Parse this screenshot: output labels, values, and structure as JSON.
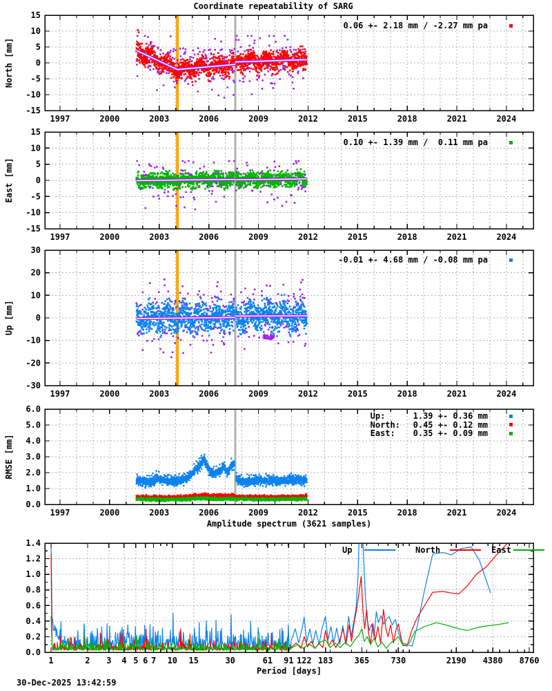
{
  "title": "Coordinate repeatability of SARG",
  "timestamp": "30-Dec-2025 13:42:59",
  "colors": {
    "north": "#ff0000",
    "east": "#00b400",
    "up": "#0c82f0",
    "outlier": "#a020f0",
    "trend_core": "#ffffff",
    "orange_line": "#ffa500",
    "gray_line": "#b0b0b0",
    "grid": "#b0b0b0",
    "axis": "#000000"
  },
  "chart_data": {
    "type": "multi-panel gnss time series + amplitude spectrum",
    "x_axis": {
      "range_years": [
        1996.08,
        2025.6
      ],
      "year_labels": [
        "1997",
        "2000",
        "2003",
        "2006",
        "2009",
        "2012",
        "2015",
        "2018",
        "2021",
        "2024"
      ],
      "minor_step_years": 1
    },
    "event_lines": {
      "orange_year": 2004.1,
      "gray_year": 2007.6
    },
    "panels": [
      {
        "id": "north",
        "ylabel": "North [mm]",
        "ylim": [
          -15,
          15
        ],
        "ytick_labels": [
          "15",
          "10",
          "5",
          "0",
          "-5",
          "-10",
          "-15"
        ],
        "stats": "0.06 +- 2.18 mm / -2.27 mm pa",
        "color_key": "north",
        "span": [
          2001.62,
          2011.92
        ],
        "trend": [
          [
            [
              2001.62,
              3.9
            ],
            [
              2004.1,
              -2.1
            ]
          ],
          [
            [
              2004.1,
              -2.1
            ],
            [
              2007.6,
              -0.5
            ]
          ],
          [
            [
              2007.6,
              0.3
            ],
            [
              2011.92,
              1.0
            ]
          ]
        ],
        "noise": {
          "seed": 101,
          "n": 1810,
          "sigma": 1.5,
          "band": 3.9,
          "seasonal": 0.9,
          "out_frac": 0.1,
          "out_sigma": 3.2,
          "clip": [
            -11.8,
            8.5
          ]
        },
        "extra_points": [
          [
            2001.7,
            10.3
          ],
          [
            2001.76,
            9.6
          ]
        ]
      },
      {
        "id": "east",
        "ylabel": "East [mm]",
        "ylim": [
          -15,
          15
        ],
        "ytick_labels": [
          "15",
          "10",
          "5",
          "0",
          "-5",
          "-10",
          "-15"
        ],
        "stats": "0.10 +- 1.39 mm /  0.11 mm pa",
        "color_key": "east",
        "span": [
          2001.62,
          2011.92
        ],
        "trend": [
          [
            [
              2001.62,
              -0.1
            ],
            [
              2004.1,
              0.1
            ]
          ],
          [
            [
              2004.1,
              0.1
            ],
            [
              2007.6,
              0.3
            ]
          ],
          [
            [
              2007.6,
              0.2
            ],
            [
              2011.92,
              0.45
            ]
          ]
        ],
        "noise": {
          "seed": 111,
          "n": 1810,
          "sigma": 1.1,
          "band": 2.8,
          "seasonal": 0.45,
          "out_frac": 0.07,
          "out_sigma": 3.0,
          "clip": [
            -9.0,
            6.0
          ]
        }
      },
      {
        "id": "up",
        "ylabel": "Up [mm]",
        "ylim": [
          -30,
          30
        ],
        "ytick_labels": [
          "30",
          "20",
          "10",
          "0",
          "-10",
          "-20",
          "-30"
        ],
        "stats": "-0.01 +- 4.68 mm / -0.08 mm pa",
        "color_key": "up",
        "span": [
          2001.62,
          2011.92
        ],
        "trend": [
          [
            [
              2001.62,
              -0.3
            ],
            [
              2004.1,
              -0.1
            ]
          ],
          [
            [
              2004.1,
              -0.1
            ],
            [
              2007.6,
              0.2
            ]
          ],
          [
            [
              2007.6,
              0.8
            ],
            [
              2011.92,
              0.9
            ]
          ]
        ],
        "noise": {
          "seed": 121,
          "n": 1810,
          "sigma": 3.2,
          "band": 8.0,
          "seasonal": 1.6,
          "out_frac": 0.1,
          "out_sigma": 5.0,
          "clip": [
            -21.0,
            19.0
          ]
        },
        "purple_cluster": {
          "t0": 2009.3,
          "t1": 2009.95,
          "v": -8.5,
          "spread": 1.1,
          "n": 40
        }
      },
      {
        "id": "rmse",
        "ylabel": "RMSE [mm]",
        "ylim": [
          0,
          6
        ],
        "ytick_labels": [
          "6.0",
          "5.0",
          "4.0",
          "3.0",
          "2.0",
          "1.0",
          "0.0"
        ],
        "span": [
          2001.62,
          2011.92
        ],
        "legend": [
          {
            "label": "Up:",
            "value": "1.39 +- 0.36 mm",
            "color_key": "up"
          },
          {
            "label": "North:",
            "value": "0.45 +- 0.12 mm",
            "color_key": "north"
          },
          {
            "label": "East:",
            "value": "0.35 +- 0.09 mm",
            "color_key": "east"
          }
        ],
        "series": [
          {
            "color_key": "up",
            "seed": 201,
            "noise": 0.13,
            "spike": 0.3,
            "anchors": [
              [
                2001.62,
                1.45
              ],
              [
                2002.5,
                1.42
              ],
              [
                2003.0,
                1.6
              ],
              [
                2003.6,
                1.42
              ],
              [
                2004.3,
                1.5
              ],
              [
                2004.8,
                1.75
              ],
              [
                2005.3,
                2.25
              ],
              [
                2005.7,
                2.85
              ],
              [
                2006.0,
                2.15
              ],
              [
                2006.35,
                1.9
              ],
              [
                2006.65,
                2.1
              ],
              [
                2006.9,
                2.45
              ],
              [
                2007.1,
                2.0
              ],
              [
                2007.35,
                2.35
              ],
              [
                2007.58,
                2.55
              ],
              [
                2007.65,
                1.55
              ],
              [
                2008.2,
                1.45
              ],
              [
                2009.0,
                1.5
              ],
              [
                2010.0,
                1.48
              ],
              [
                2011.0,
                1.55
              ],
              [
                2011.92,
                1.5
              ]
            ]
          },
          {
            "color_key": "north",
            "seed": 202,
            "noise": 0.045,
            "spike": 0.06,
            "anchors": [
              [
                2001.62,
                0.45
              ],
              [
                2003.0,
                0.44
              ],
              [
                2004.5,
                0.46
              ],
              [
                2005.2,
                0.52
              ],
              [
                2005.7,
                0.6
              ],
              [
                2006.2,
                0.52
              ],
              [
                2007.0,
                0.52
              ],
              [
                2007.5,
                0.56
              ],
              [
                2007.7,
                0.47
              ],
              [
                2009.0,
                0.46
              ],
              [
                2010.5,
                0.47
              ],
              [
                2011.92,
                0.5
              ]
            ]
          },
          {
            "color_key": "east",
            "seed": 203,
            "noise": 0.04,
            "spike": 0.05,
            "anchors": [
              [
                2001.62,
                0.32
              ],
              [
                2003.0,
                0.3
              ],
              [
                2004.5,
                0.33
              ],
              [
                2005.7,
                0.38
              ],
              [
                2006.5,
                0.34
              ],
              [
                2007.6,
                0.35
              ],
              [
                2009.0,
                0.32
              ],
              [
                2010.5,
                0.33
              ],
              [
                2011.92,
                0.35
              ]
            ]
          }
        ]
      }
    ],
    "spectrum": {
      "title": "Amplitude spectrum (3621 samples)",
      "xlabel": "Period [days]",
      "xtick_labels": [
        "1",
        "2",
        "3",
        "4",
        "5",
        "6",
        "7",
        "10",
        "15",
        "30",
        "61",
        "91",
        "122",
        "183",
        "365",
        "730",
        "2190",
        "4380",
        "8760"
      ],
      "ylim": [
        0,
        1.4
      ],
      "ytick_labels": [
        "1.4",
        "1.2",
        "1.0",
        "0.8",
        "0.6",
        "0.4",
        "0.2",
        "0.0"
      ],
      "legend": [
        {
          "label": "Up",
          "color_key": "up"
        },
        {
          "label": "North",
          "color_key": "north"
        },
        {
          "label": "East",
          "color_key": "east"
        }
      ],
      "start_spike": {
        "up": 1.42,
        "north": 1.26,
        "east": 0.46
      },
      "noise": {
        "pmin": 1.02,
        "pmax": 95,
        "n": 540,
        "up": {
          "seed": 301,
          "base": 0.06,
          "mean": 0.07,
          "spike_p": 0.03,
          "spike": 0.22,
          "low_boost": 0.34,
          "cap": 0.5
        },
        "north": {
          "seed": 302,
          "base": 0.025,
          "mean": 0.035,
          "spike_p": 0.012,
          "spike": 0.16,
          "low_boost": 0,
          "cap": 0.3
        },
        "east": {
          "seed": 303,
          "base": 0.025,
          "mean": 0.03,
          "spike_p": 0.01,
          "spike": 0.11,
          "low_boost": 0,
          "cap": 0.22
        }
      },
      "series": {
        "up": [
          [
            95,
            0.14
          ],
          [
            103,
            0.3
          ],
          [
            110,
            0.12
          ],
          [
            118,
            0.32
          ],
          [
            122,
            0.45
          ],
          [
            128,
            0.13
          ],
          [
            136,
            0.3
          ],
          [
            144,
            0.11
          ],
          [
            152,
            0.28
          ],
          [
            162,
            0.1
          ],
          [
            172,
            0.32
          ],
          [
            183,
            0.46
          ],
          [
            192,
            0.16
          ],
          [
            203,
            0.33
          ],
          [
            214,
            0.12
          ],
          [
            226,
            0.31
          ],
          [
            240,
            0.1
          ],
          [
            254,
            0.34
          ],
          [
            268,
            0.12
          ],
          [
            284,
            0.46
          ],
          [
            298,
            0.2
          ],
          [
            312,
            0.38
          ],
          [
            326,
            0.55
          ],
          [
            338,
            0.92
          ],
          [
            348,
            1.55
          ],
          [
            366,
            1.7
          ],
          [
            378,
            1.2
          ],
          [
            390,
            0.72
          ],
          [
            404,
            0.42
          ],
          [
            420,
            0.28
          ],
          [
            440,
            0.36
          ],
          [
            460,
            0.2
          ],
          [
            480,
            0.52
          ],
          [
            500,
            0.38
          ],
          [
            525,
            0.47
          ],
          [
            552,
            0.36
          ],
          [
            580,
            0.42
          ],
          [
            612,
            0.46
          ],
          [
            650,
            0.35
          ],
          [
            690,
            0.42
          ],
          [
            730,
            0.25
          ],
          [
            790,
            0.12
          ],
          [
            860,
            0.1
          ],
          [
            950,
            0.08
          ],
          [
            1050,
            0.35
          ],
          [
            1200,
            0.8
          ],
          [
            1400,
            1.26
          ],
          [
            1700,
            1.28
          ],
          [
            2000,
            1.25
          ],
          [
            2400,
            1.33
          ],
          [
            2900,
            1.35
          ],
          [
            3400,
            1.18
          ],
          [
            4200,
            0.76
          ]
        ],
        "north": [
          [
            95,
            0.06
          ],
          [
            105,
            0.12
          ],
          [
            115,
            0.05
          ],
          [
            122,
            0.2
          ],
          [
            130,
            0.07
          ],
          [
            140,
            0.14
          ],
          [
            150,
            0.05
          ],
          [
            162,
            0.12
          ],
          [
            174,
            0.06
          ],
          [
            183,
            0.28
          ],
          [
            195,
            0.08
          ],
          [
            208,
            0.16
          ],
          [
            222,
            0.06
          ],
          [
            238,
            0.14
          ],
          [
            255,
            0.3
          ],
          [
            270,
            0.1
          ],
          [
            286,
            0.35
          ],
          [
            300,
            0.14
          ],
          [
            315,
            0.38
          ],
          [
            330,
            0.55
          ],
          [
            345,
            0.75
          ],
          [
            360,
            0.97
          ],
          [
            372,
            0.55
          ],
          [
            385,
            0.3
          ],
          [
            400,
            0.55
          ],
          [
            414,
            0.25
          ],
          [
            430,
            0.1
          ],
          [
            450,
            0.37
          ],
          [
            470,
            0.15
          ],
          [
            495,
            0.33
          ],
          [
            520,
            0.12
          ],
          [
            550,
            0.55
          ],
          [
            576,
            0.3
          ],
          [
            600,
            0.2
          ],
          [
            630,
            0.35
          ],
          [
            665,
            0.12
          ],
          [
            700,
            0.3
          ],
          [
            730,
            0.36
          ],
          [
            790,
            0.1
          ],
          [
            860,
            0.08
          ],
          [
            950,
            0.3
          ],
          [
            1050,
            0.45
          ],
          [
            1200,
            0.6
          ],
          [
            1400,
            0.77
          ],
          [
            1700,
            0.78
          ],
          [
            2000,
            0.76
          ],
          [
            2300,
            0.75
          ],
          [
            2700,
            0.85
          ],
          [
            3200,
            1.0
          ],
          [
            3900,
            1.1
          ],
          [
            4700,
            1.25
          ],
          [
            5800,
            1.4
          ]
        ],
        "east": [
          [
            95,
            0.05
          ],
          [
            108,
            0.1
          ],
          [
            120,
            0.05
          ],
          [
            134,
            0.11
          ],
          [
            150,
            0.05
          ],
          [
            166,
            0.13
          ],
          [
            183,
            0.16
          ],
          [
            200,
            0.06
          ],
          [
            220,
            0.12
          ],
          [
            242,
            0.06
          ],
          [
            266,
            0.13
          ],
          [
            292,
            0.07
          ],
          [
            320,
            0.16
          ],
          [
            345,
            0.22
          ],
          [
            365,
            0.3
          ],
          [
            382,
            0.14
          ],
          [
            404,
            0.2
          ],
          [
            430,
            0.1
          ],
          [
            460,
            0.18
          ],
          [
            495,
            0.07
          ],
          [
            535,
            0.13
          ],
          [
            580,
            0.05
          ],
          [
            630,
            0.12
          ],
          [
            690,
            0.16
          ],
          [
            730,
            0.2
          ],
          [
            800,
            0.08
          ],
          [
            900,
            0.12
          ],
          [
            1000,
            0.27
          ],
          [
            1200,
            0.33
          ],
          [
            1500,
            0.38
          ],
          [
            1800,
            0.35
          ],
          [
            2200,
            0.31
          ],
          [
            2700,
            0.28
          ],
          [
            3300,
            0.32
          ],
          [
            4000,
            0.34
          ],
          [
            5000,
            0.36
          ],
          [
            5900,
            0.38
          ]
        ]
      }
    }
  }
}
